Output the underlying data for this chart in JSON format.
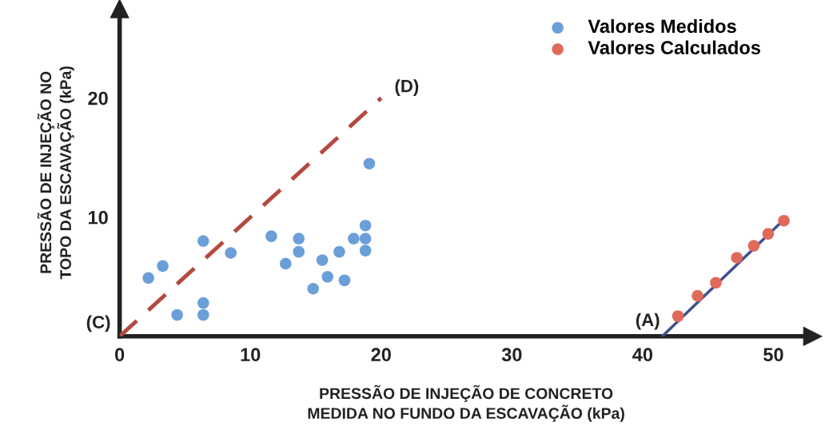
{
  "chart_data": {
    "type": "scatter",
    "xlabel": "PRESSÃO DE INJEÇÃO DE CONCRETO\nMEDIDA NO FUNDO DA ESCAVAÇÃO (kPa)",
    "ylabel": "PRESSÃO DE INJEÇÃO NO\nTOPO DA ESCAVAÇÃO (kPa)",
    "xlim": [
      0,
      53
    ],
    "ylim": [
      0,
      27.5
    ],
    "xticks": [
      0,
      10,
      20,
      30,
      40,
      50
    ],
    "yticks": [
      10,
      20
    ],
    "grid": false,
    "legend": "top right",
    "series": [
      {
        "name": "Valores Medidos",
        "marker": "circle",
        "color": "#6a9fd8",
        "x": [
          2.2,
          3.3,
          4.4,
          6.4,
          6.4,
          6.4,
          8.5,
          11.6,
          12.7,
          13.7,
          13.7,
          14.8,
          15.5,
          15.9,
          16.8,
          17.2,
          17.9,
          18.8,
          18.8,
          18.8,
          19.1
        ],
        "values": [
          4.9,
          5.9,
          1.8,
          2.8,
          1.8,
          8.0,
          7.0,
          8.4,
          6.1,
          8.2,
          7.1,
          4.0,
          6.4,
          5.0,
          7.1,
          4.7,
          8.2,
          9.3,
          8.2,
          7.2,
          14.5
        ]
      },
      {
        "name": "Valores Calculados",
        "marker": "circle",
        "color": "#e06a5a",
        "x": [
          42.7,
          44.2,
          45.6,
          47.2,
          48.5,
          49.6,
          50.8
        ],
        "values": [
          1.7,
          3.4,
          4.5,
          6.6,
          7.6,
          8.6,
          9.7
        ]
      },
      {
        "type": "line",
        "color": "#3f4f8f",
        "line_style": "solid",
        "x": [
          41.5,
          51
        ],
        "values": [
          0,
          10
        ]
      },
      {
        "type": "line",
        "color": "#b5483f",
        "line_style": "dashed",
        "x": [
          0,
          20
        ],
        "values": [
          0,
          20
        ]
      }
    ],
    "annotations": [
      {
        "text": "(C)",
        "x": 0,
        "y": 0
      },
      {
        "text": "(D)",
        "x": 20,
        "y": 20
      },
      {
        "text": "(A)",
        "x": 41.5,
        "y": 0
      }
    ]
  }
}
